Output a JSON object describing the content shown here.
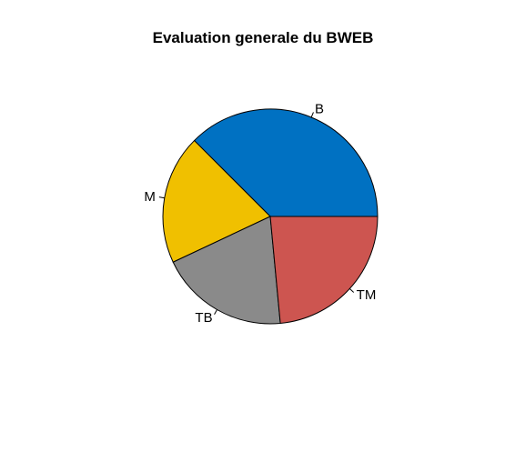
{
  "chart_data": {
    "type": "pie",
    "title": "Evaluation generale du BWEB",
    "slices": [
      {
        "label": "B",
        "value": 37.5,
        "color": "#0071c2"
      },
      {
        "label": "M",
        "value": 19.5,
        "color": "#f0c000"
      },
      {
        "label": "TB",
        "value": 19.5,
        "color": "#8a8a8a"
      },
      {
        "label": "TM",
        "value": 23.5,
        "color": "#cd5550"
      }
    ],
    "start_angle_deg": 0,
    "direction": "counterclockwise",
    "legend": "none"
  }
}
